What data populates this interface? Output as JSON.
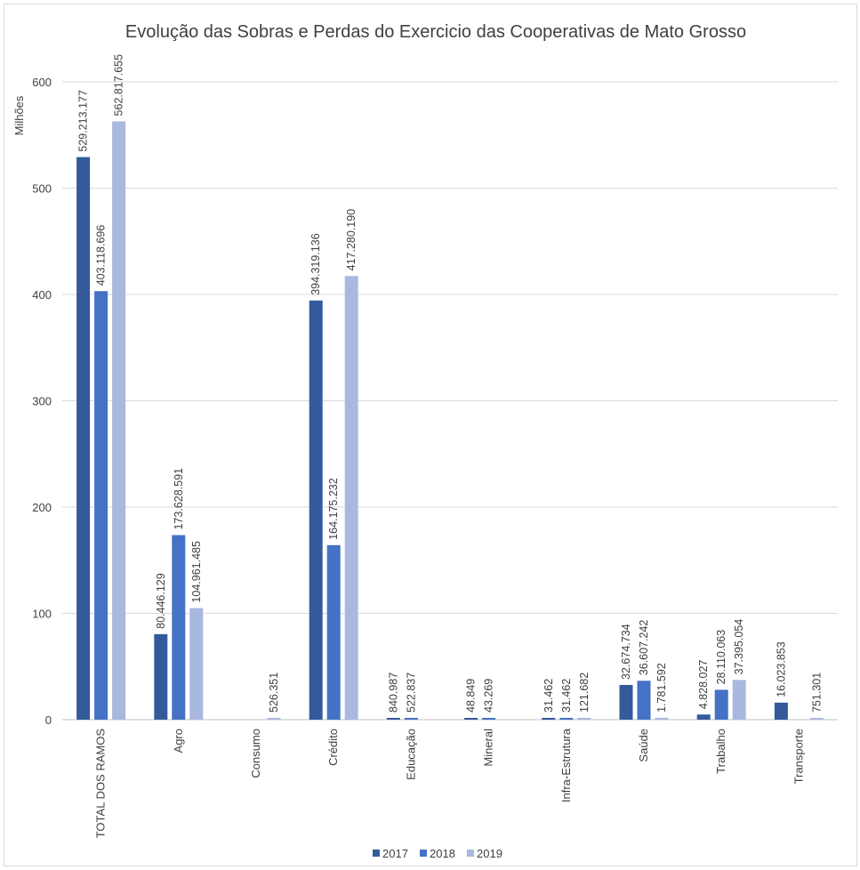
{
  "chart_data": {
    "type": "bar",
    "title": "Evolução das Sobras e Perdas do Exercicio das Cooperativas de Mato Grosso",
    "ylabel": "Milhões",
    "xlabel": "",
    "ylim": [
      0,
      600
    ],
    "yticks": [
      0,
      100,
      200,
      300,
      400,
      500,
      600
    ],
    "grid": true,
    "legend_position": "bottom",
    "categories": [
      "TOTAL DOS RAMOS",
      "Agro",
      "Consumo",
      "Crédito",
      "Educação",
      "Mineral",
      "Infra-Estrutura",
      "Saúde",
      "Trabalho",
      "Transporte"
    ],
    "series": [
      {
        "name": "2017",
        "color": "#345a9c",
        "values": [
          529.213177,
          80.446129,
          0,
          394.319136,
          0.840987,
          0.048849,
          0.031462,
          32.674734,
          4.828027,
          16.023853
        ],
        "labels": [
          "529.213.177",
          "80.446.129",
          "",
          "394.319.136",
          "840.987",
          "48.849",
          "31.462",
          "32.674.734",
          "4.828.027",
          "16.023.853"
        ]
      },
      {
        "name": "2018",
        "color": "#4472c4",
        "values": [
          403.118696,
          173.628591,
          0,
          164.175232,
          0.522837,
          0.043269,
          0.031462,
          36.607242,
          28.110063,
          0
        ],
        "labels": [
          "403.118.696",
          "173.628.591",
          "",
          "164.175.232",
          "522.837",
          "43.269",
          "31.462",
          "36.607.242",
          "28.110.063",
          ""
        ]
      },
      {
        "name": "2019",
        "color": "#a9b8de",
        "values": [
          562.817655,
          104.961485,
          0.526351,
          417.28019,
          0,
          0,
          0.121682,
          1.781592,
          37.395054,
          0.751301
        ],
        "labels": [
          "562.817.655",
          "104.961.485",
          "526.351",
          "417.280.190",
          "",
          "",
          "121.682",
          "1.781.592",
          "37.395.054",
          "751.301"
        ]
      }
    ]
  }
}
